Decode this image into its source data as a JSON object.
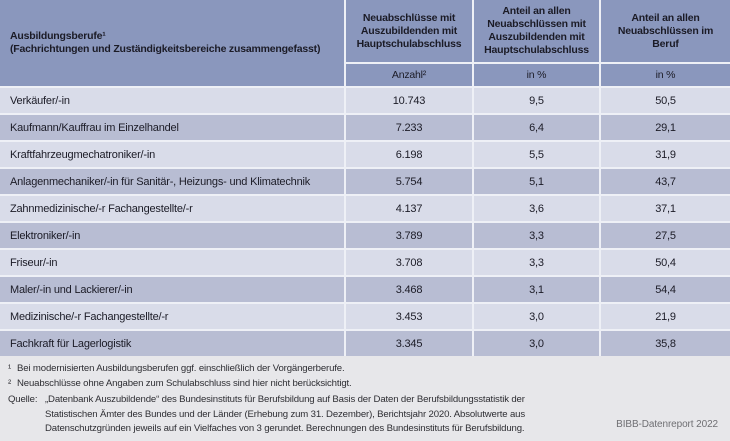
{
  "colors": {
    "header_bg": "#8a97bd",
    "row_light": "#d9dce9",
    "row_dark": "#b8bdd3",
    "page_bg": "#e7e7ea",
    "gap_color": "#eef0f6",
    "table_text": "#1b1b26"
  },
  "chart_data": {
    "type": "table",
    "col1_header": {
      "line1": "Ausbildungsberufe¹",
      "line2": "(Fachrichtungen und Zuständigkeitsbereiche zusammengefasst)"
    },
    "columns": [
      {
        "header": "Neuabschlüsse mit Auszubildenden mit Hauptschulabschluss",
        "subheader": "Anzahl²"
      },
      {
        "header": "Anteil an allen Neuabschlüssen mit Auszubildenden mit Hauptschulabschluss",
        "subheader": "in %"
      },
      {
        "header": "Anteil an allen Neuabschlüssen im Beruf",
        "subheader": "in %"
      }
    ],
    "rows": [
      {
        "label": "Verkäufer/-in",
        "values": [
          "10.743",
          "9,5",
          "50,5"
        ]
      },
      {
        "label": "Kaufmann/Kauffrau im Einzelhandel",
        "values": [
          "7.233",
          "6,4",
          "29,1"
        ]
      },
      {
        "label": "Kraftfahrzeugmechatroniker/-in",
        "values": [
          "6.198",
          "5,5",
          "31,9"
        ]
      },
      {
        "label": "Anlagenmechaniker/-in für Sanitär-, Heizungs- und Klimatechnik",
        "values": [
          "5.754",
          "5,1",
          "43,7"
        ]
      },
      {
        "label": "Zahnmedizinische/-r Fachangestellte/-r",
        "values": [
          "4.137",
          "3,6",
          "37,1"
        ]
      },
      {
        "label": "Elektroniker/-in",
        "values": [
          "3.789",
          "3,3",
          "27,5"
        ]
      },
      {
        "label": "Friseur/-in",
        "values": [
          "3.708",
          "3,3",
          "50,4"
        ]
      },
      {
        "label": "Maler/-in und Lackierer/-in",
        "values": [
          "3.468",
          "3,1",
          "54,4"
        ]
      },
      {
        "label": "Medizinische/-r Fachangestellte/-r",
        "values": [
          "3.453",
          "3,0",
          "21,9"
        ]
      },
      {
        "label": "Fachkraft für Lagerlogistik",
        "values": [
          "3.345",
          "3,0",
          "35,8"
        ]
      }
    ]
  },
  "footnotes": [
    {
      "marker": "¹",
      "text": "Bei modernisierten Ausbildungsberufen ggf. einschließlich der Vorgängerberufe."
    },
    {
      "marker": "²",
      "text": "Neuabschlüsse ohne Angaben zum Schulabschluss sind hier nicht berücksichtigt."
    }
  ],
  "source": {
    "label": "Quelle:",
    "text": "„Datenbank Auszubildende“ des Bundesinstituts für Berufsbildung auf Basis der Daten der Berufsbildungsstatistik der Statistischen Ämter des Bundes und der Länder (Erhebung zum 31. Dezember), Berichtsjahr 2020. Absolutwerte aus Datenschutzgründen jeweils auf ein Vielfaches von 3 gerundet. Berechnungen des Bundesinstituts für Berufsbildung."
  },
  "branding": "BIBB-Datenreport 2022"
}
